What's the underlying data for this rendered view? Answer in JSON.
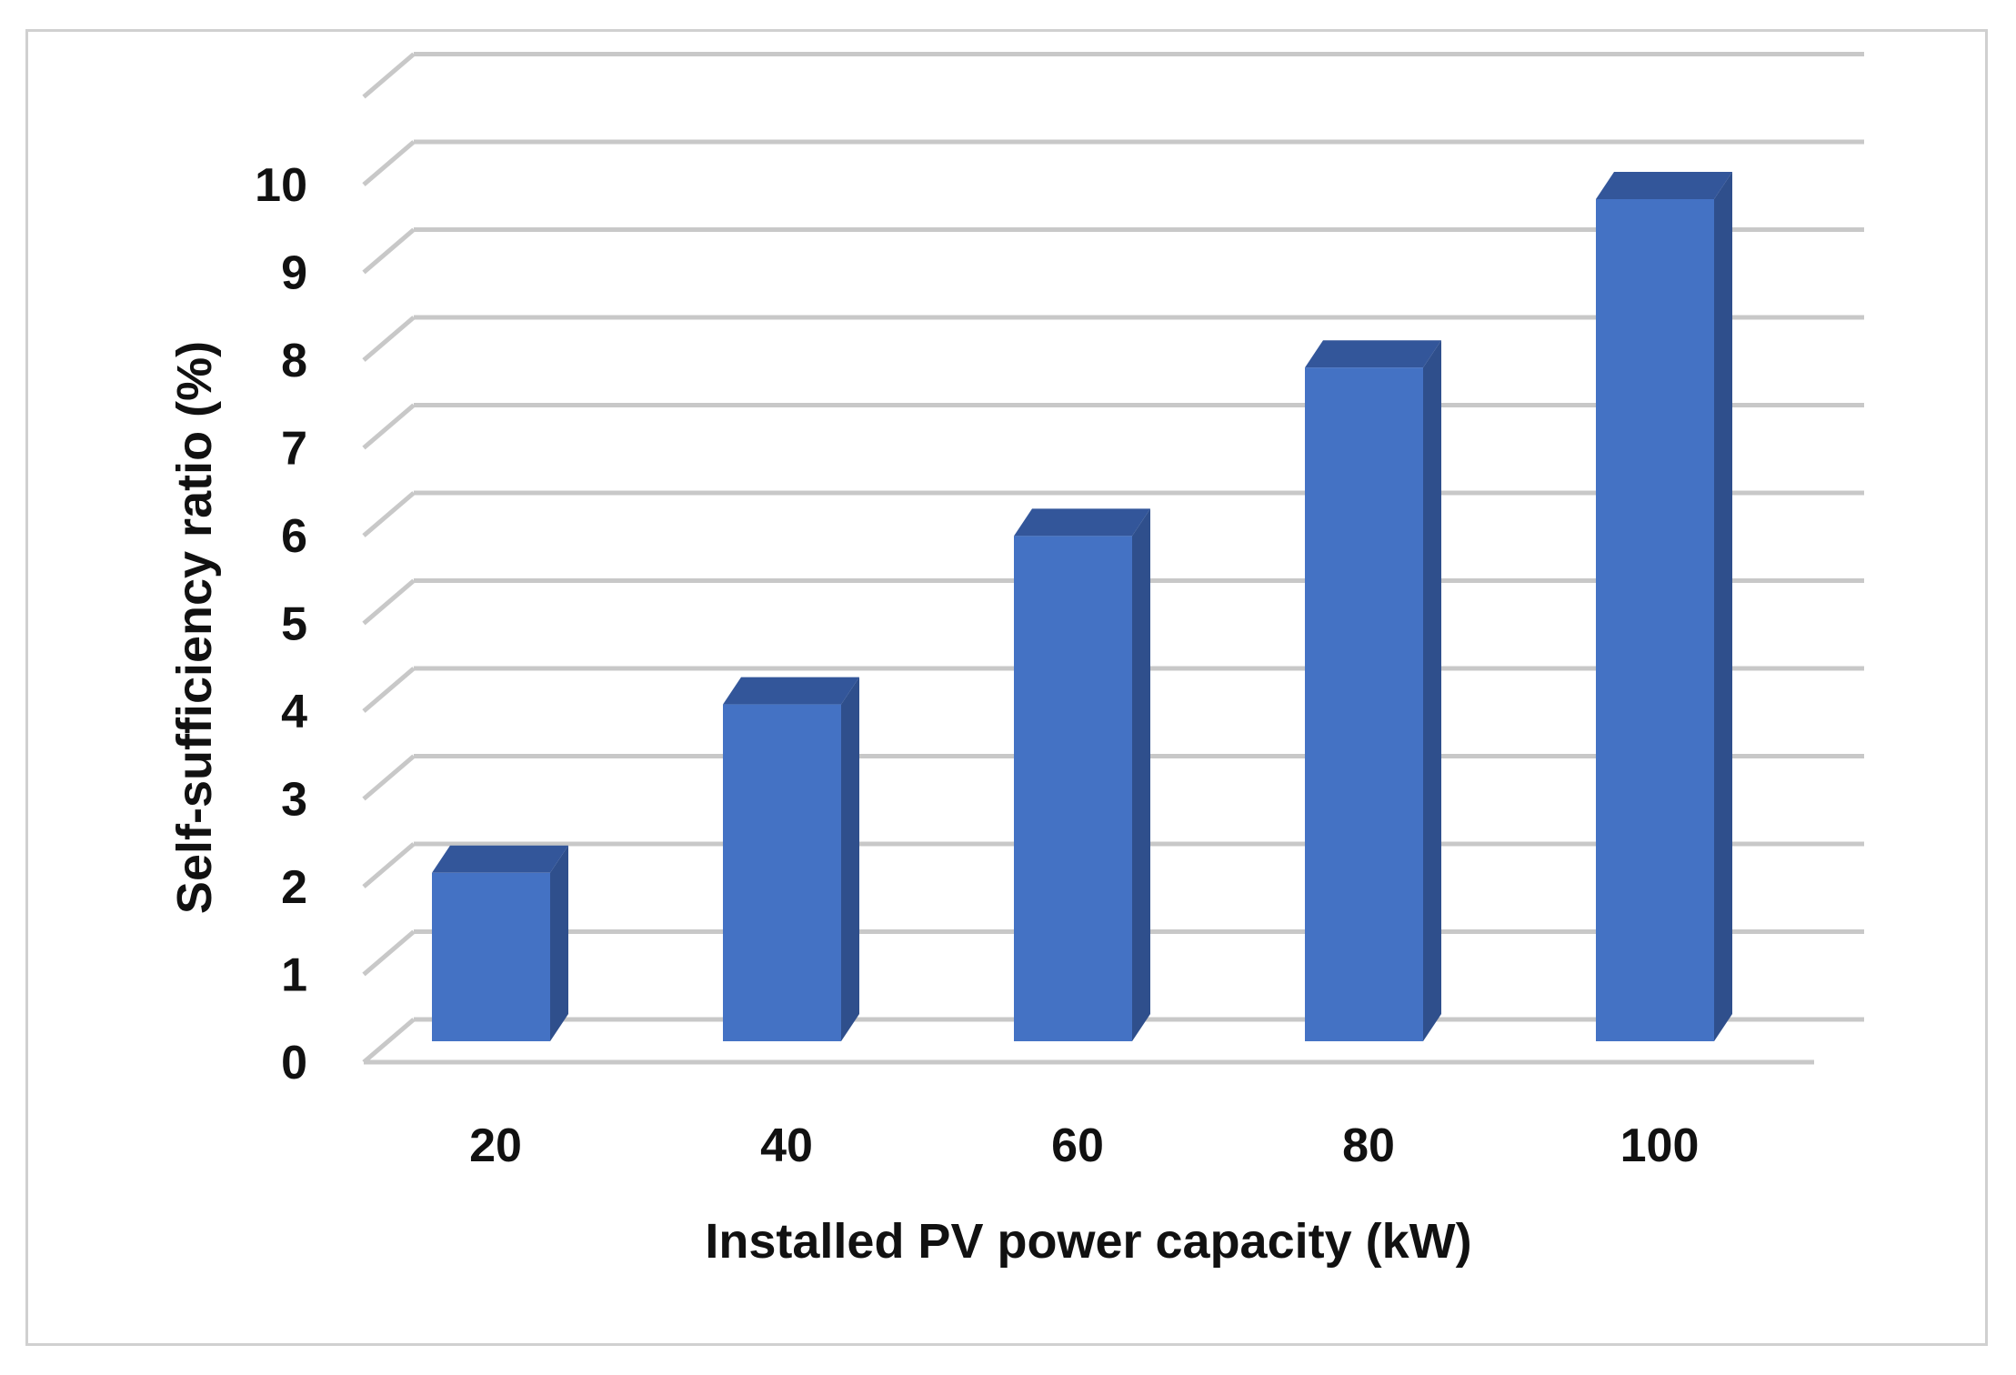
{
  "chart_data": {
    "type": "bar",
    "style": "3d-column",
    "categories": [
      "20",
      "40",
      "60",
      "80",
      "100"
    ],
    "values": [
      2,
      4,
      6,
      8,
      10
    ],
    "xlabel": "Installed PV power capacity (kW)",
    "ylabel": "Self-sufficiency ratio (%)",
    "ylim": [
      0,
      10
    ],
    "yticks": [
      "0",
      "1",
      "2",
      "3",
      "4",
      "5",
      "6",
      "7",
      "8",
      "9",
      "10"
    ],
    "grid": true,
    "legend": "none",
    "colors": {
      "bar_front": "#4472c4",
      "bar_top": "#33569a",
      "bar_side": "#2f4f8c",
      "grid": "#c8c8c8"
    }
  }
}
